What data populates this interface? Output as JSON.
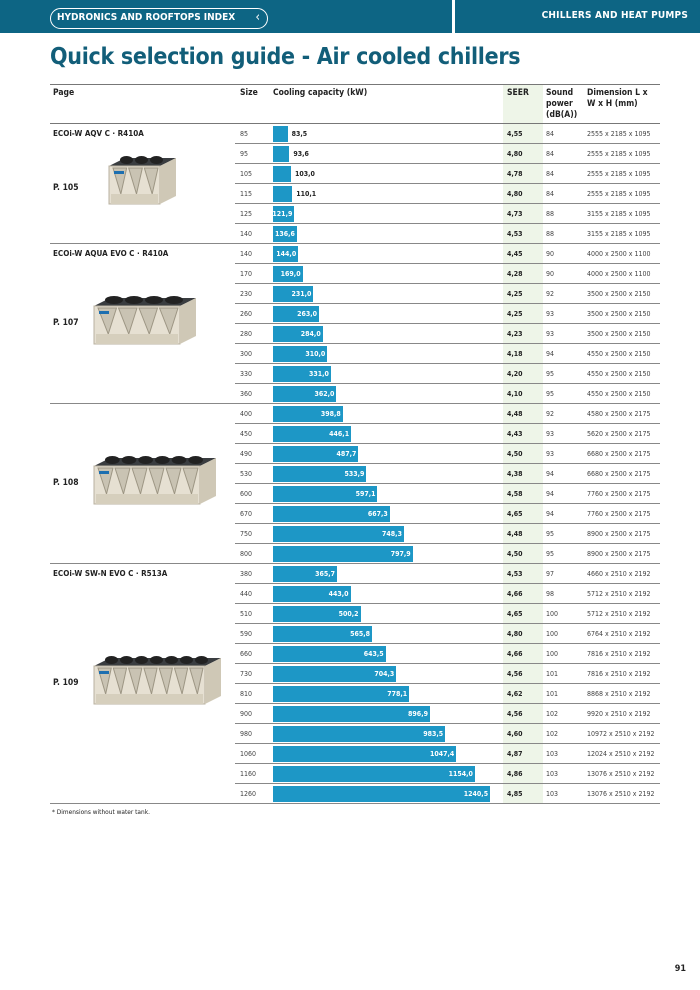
{
  "header": {
    "index_label": "HYDRONICS AND ROOFTOPS INDEX",
    "section": "CHILLERS AND HEAT PUMPS"
  },
  "title": "Quick selection guide - Air cooled chillers",
  "columns": {
    "page": "Page",
    "size": "Size",
    "capacity": "Cooling capacity (kW)",
    "seer": "SEER",
    "sound": "Sound power (dB(A))",
    "dimension": "Dimension L x W x H (mm)"
  },
  "colors": {
    "brand": "#0d6584",
    "bar": "#1d97c6",
    "title": "#125e79",
    "seer_bg": "#eef5e8"
  },
  "groups": [
    {
      "model": "ECOi-W AQV C · R410A",
      "page": "P. 105",
      "rows": [
        {
          "size": "85",
          "capacity": "83,5",
          "seer": "4,55",
          "sound": "84",
          "dim": "2555 x 2185 x 1095"
        },
        {
          "size": "95",
          "capacity": "93,6",
          "seer": "4,80",
          "sound": "84",
          "dim": "2555 x 2185 x 1095"
        },
        {
          "size": "105",
          "capacity": "103,0",
          "seer": "4,78",
          "sound": "84",
          "dim": "2555 x 2185 x 1095"
        },
        {
          "size": "115",
          "capacity": "110,1",
          "seer": "4,80",
          "sound": "84",
          "dim": "2555 x 2185 x 1095"
        },
        {
          "size": "125",
          "capacity": "121,9",
          "seer": "4,73",
          "sound": "88",
          "dim": "3155 x 2185 x 1095"
        },
        {
          "size": "140",
          "capacity": "136,6",
          "seer": "4,53",
          "sound": "88",
          "dim": "3155 x 2185 x 1095"
        }
      ]
    },
    {
      "model": "ECOi-W AQUA EVO C · R410A",
      "page": "P. 107",
      "rows": [
        {
          "size": "140",
          "capacity": "144,0",
          "seer": "4,45",
          "sound": "90",
          "dim": "4000 x 2500 x 1100"
        },
        {
          "size": "170",
          "capacity": "169,0",
          "seer": "4,28",
          "sound": "90",
          "dim": "4000 x 2500 x 1100"
        },
        {
          "size": "230",
          "capacity": "231,0",
          "seer": "4,25",
          "sound": "92",
          "dim": "3500 x 2500 x 2150"
        },
        {
          "size": "260",
          "capacity": "263,0",
          "seer": "4,25",
          "sound": "93",
          "dim": "3500 x 2500 x 2150"
        },
        {
          "size": "280",
          "capacity": "284,0",
          "seer": "4,23",
          "sound": "93",
          "dim": "3500 x 2500 x 2150"
        },
        {
          "size": "300",
          "capacity": "310,0",
          "seer": "4,18",
          "sound": "94",
          "dim": "4550 x 2500 x 2150"
        },
        {
          "size": "330",
          "capacity": "331,0",
          "seer": "4,20",
          "sound": "95",
          "dim": "4550 x 2500 x 2150"
        },
        {
          "size": "360",
          "capacity": "362,0",
          "seer": "4,10",
          "sound": "95",
          "dim": "4550 x 2500 x 2150"
        }
      ]
    },
    {
      "model": "",
      "page": "P. 108",
      "rows": [
        {
          "size": "400",
          "capacity": "398,8",
          "seer": "4,48",
          "sound": "92",
          "dim": "4580 x 2500 x 2175"
        },
        {
          "size": "450",
          "capacity": "446,1",
          "seer": "4,43",
          "sound": "93",
          "dim": "5620 x 2500 x 2175"
        },
        {
          "size": "490",
          "capacity": "487,7",
          "seer": "4,50",
          "sound": "93",
          "dim": "6680 x 2500 x 2175"
        },
        {
          "size": "530",
          "capacity": "533,9",
          "seer": "4,38",
          "sound": "94",
          "dim": "6680 x 2500 x 2175"
        },
        {
          "size": "600",
          "capacity": "597,1",
          "seer": "4,58",
          "sound": "94",
          "dim": "7760 x 2500 x 2175"
        },
        {
          "size": "670",
          "capacity": "667,3",
          "seer": "4,65",
          "sound": "94",
          "dim": "7760 x 2500 x 2175"
        },
        {
          "size": "750",
          "capacity": "748,3",
          "seer": "4,48",
          "sound": "95",
          "dim": "8900 x 2500 x 2175"
        },
        {
          "size": "800",
          "capacity": "797,9",
          "seer": "4,50",
          "sound": "95",
          "dim": "8900 x 2500 x 2175"
        }
      ]
    },
    {
      "model": "ECOi-W SW-N EVO C · R513A",
      "page": "P. 109",
      "rows": [
        {
          "size": "380",
          "capacity": "365,7",
          "seer": "4,53",
          "sound": "97",
          "dim": "4660 x 2510 x 2192"
        },
        {
          "size": "440",
          "capacity": "443,0",
          "seer": "4,66",
          "sound": "98",
          "dim": "5712 x 2510 x 2192"
        },
        {
          "size": "510",
          "capacity": "500,2",
          "seer": "4,65",
          "sound": "100",
          "dim": "5712 x 2510 x 2192"
        },
        {
          "size": "590",
          "capacity": "565,8",
          "seer": "4,80",
          "sound": "100",
          "dim": "6764 x 2510 x 2192"
        },
        {
          "size": "660",
          "capacity": "643,5",
          "seer": "4,66",
          "sound": "100",
          "dim": "7816 x 2510 x 2192"
        },
        {
          "size": "730",
          "capacity": "704,3",
          "seer": "4,56",
          "sound": "101",
          "dim": "7816 x 2510 x 2192"
        },
        {
          "size": "810",
          "capacity": "778,1",
          "seer": "4,62",
          "sound": "101",
          "dim": "8868 x 2510 x 2192"
        },
        {
          "size": "900",
          "capacity": "896,9",
          "seer": "4,56",
          "sound": "102",
          "dim": "9920 x 2510 x 2192"
        },
        {
          "size": "980",
          "capacity": "983,5",
          "seer": "4,60",
          "sound": "102",
          "dim": "10972 x 2510 x 2192"
        },
        {
          "size": "1060",
          "capacity": "1047,4",
          "seer": "4,87",
          "sound": "103",
          "dim": "12024 x 2510 x 2192"
        },
        {
          "size": "1160",
          "capacity": "1154,0",
          "seer": "4,86",
          "sound": "103",
          "dim": "13076 x 2510 x 2192"
        },
        {
          "size": "1260",
          "capacity": "1240,5",
          "seer": "4,85",
          "sound": "103",
          "dim": "13076 x 2510 x 2192"
        }
      ]
    }
  ],
  "footnote": "* Dimensions without water tank.",
  "page_number": "91"
}
